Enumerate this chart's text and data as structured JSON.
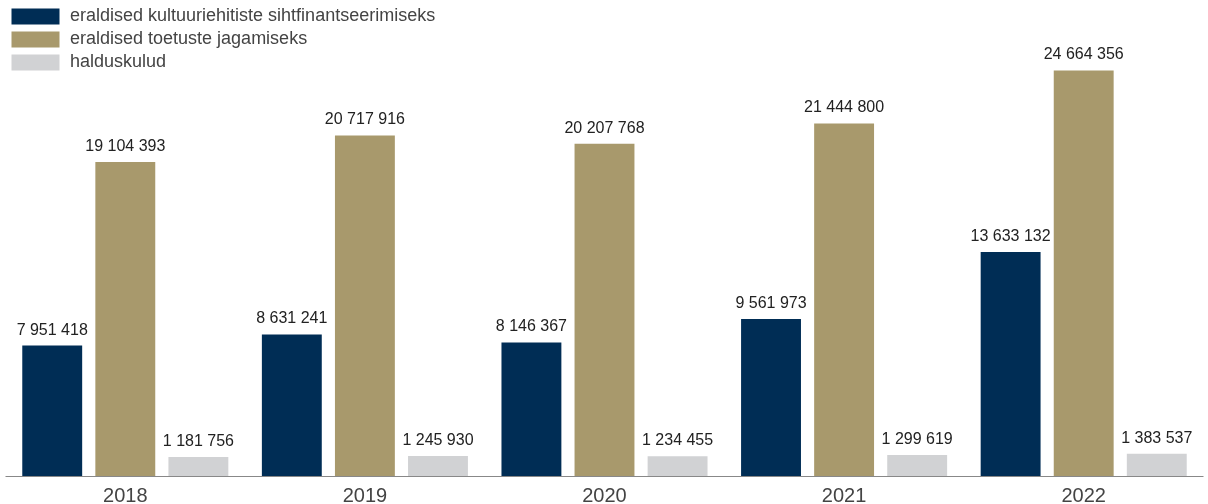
{
  "chart_data": {
    "type": "bar",
    "categories": [
      "2018",
      "2019",
      "2020",
      "2021",
      "2022"
    ],
    "series": [
      {
        "name": "eraldised kultuuriehitiste sihtfinantseerimiseks",
        "color": "#002d55",
        "values": [
          7951418,
          8631241,
          8146367,
          9561973,
          13633132
        ],
        "value_labels": [
          "7 951 418",
          "8 631 241",
          "8 146 367",
          "9 561 973",
          "13 633 132"
        ]
      },
      {
        "name": "eraldised toetuste jagamiseks",
        "color": "#a8996c",
        "values": [
          19104393,
          20717916,
          20207768,
          21444800,
          24664356
        ],
        "value_labels": [
          "19 104 393",
          "20 717 916",
          "20 207 768",
          "21 444 800",
          "24 664 356"
        ]
      },
      {
        "name": "halduskulud",
        "color": "#d1d2d4",
        "values": [
          1181756,
          1245930,
          1234455,
          1299619,
          1383537
        ],
        "value_labels": [
          "1 181 756",
          "1 245 930",
          "1 234 455",
          "1 299 619",
          "1 383 537"
        ]
      }
    ],
    "legend": "top left",
    "grid": false,
    "tick_labels": "x"
  }
}
